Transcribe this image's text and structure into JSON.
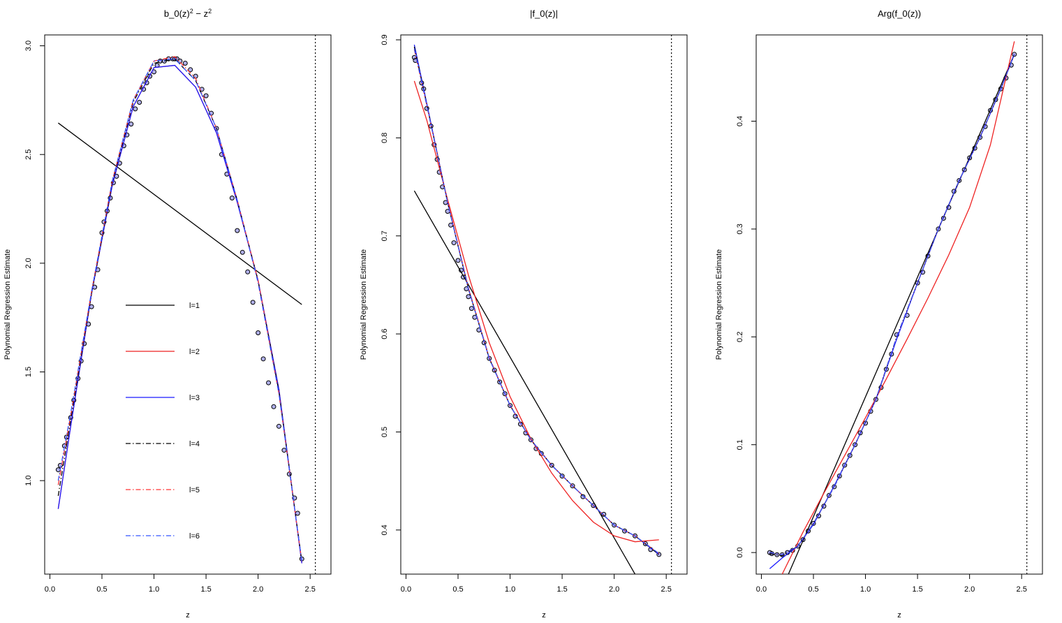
{
  "colors": {
    "l1": "#000000",
    "l2": "#ee2222",
    "l3": "#1a1aff",
    "l4": "#000000",
    "l5": "#ff3333",
    "l6": "#3355ff",
    "points_stroke": "#000000",
    "points_fill": "#7070d8",
    "reference_line": "#000000"
  },
  "chart_data": [
    {
      "type": "line",
      "title": "b_0(z)^2 - z^2",
      "title_parts": {
        "base": "b_0(z)",
        "sup1": "2",
        "minus": " − z",
        "sup2": "2"
      },
      "xlabel": "z",
      "ylabel": "Polynomial Regression Estimate",
      "xlim": [
        -0.05,
        2.7
      ],
      "ylim": [
        0.57,
        3.05
      ],
      "xticks": [
        0.0,
        0.5,
        1.0,
        1.5,
        2.0,
        2.5
      ],
      "xtick_labels": [
        "0.0",
        "0.5",
        "1.0",
        "1.5",
        "2.0",
        "2.5"
      ],
      "yticks": [
        1.0,
        1.5,
        2.0,
        2.5,
        3.0
      ],
      "ytick_labels": [
        "1.0",
        "1.5",
        "2.0",
        "2.5",
        "3.0"
      ],
      "vline": 2.55,
      "legend": {
        "placement": "inside-left",
        "entries": [
          {
            "label": "l=1",
            "key": "l1",
            "dash": "solid"
          },
          {
            "label": "l=2",
            "key": "l2",
            "dash": "solid"
          },
          {
            "label": "l=3",
            "key": "l3",
            "dash": "solid"
          },
          {
            "label": "l=4",
            "key": "l4",
            "dash": "dashdot"
          },
          {
            "label": "l=5",
            "key": "l5",
            "dash": "dashdot"
          },
          {
            "label": "l=6",
            "key": "l6",
            "dash": "dashdot"
          }
        ]
      },
      "points": {
        "x": [
          0.08,
          0.1,
          0.14,
          0.16,
          0.2,
          0.23,
          0.27,
          0.3,
          0.33,
          0.37,
          0.4,
          0.43,
          0.46,
          0.5,
          0.52,
          0.55,
          0.58,
          0.61,
          0.64,
          0.67,
          0.71,
          0.74,
          0.78,
          0.82,
          0.86,
          0.9,
          0.93,
          0.96,
          1.0,
          1.03,
          1.06,
          1.1,
          1.14,
          1.18,
          1.2,
          1.22,
          1.25,
          1.3,
          1.35,
          1.4,
          1.46,
          1.5,
          1.55,
          1.6,
          1.65,
          1.7,
          1.75,
          1.8,
          1.85,
          1.9,
          1.95,
          2.0,
          2.05,
          2.1,
          2.15,
          2.2,
          2.25,
          2.3,
          2.35,
          2.38,
          2.42
        ],
        "y": [
          1.05,
          1.07,
          1.16,
          1.2,
          1.29,
          1.37,
          1.47,
          1.55,
          1.63,
          1.72,
          1.8,
          1.89,
          1.97,
          2.14,
          2.19,
          2.24,
          2.3,
          2.37,
          2.4,
          2.46,
          2.54,
          2.59,
          2.64,
          2.71,
          2.74,
          2.8,
          2.83,
          2.86,
          2.88,
          2.91,
          2.93,
          2.93,
          2.94,
          2.94,
          2.94,
          2.94,
          2.93,
          2.92,
          2.89,
          2.86,
          2.8,
          2.77,
          2.69,
          2.62,
          2.5,
          2.41,
          2.3,
          2.15,
          2.05,
          1.96,
          1.82,
          1.68,
          1.56,
          1.45,
          1.34,
          1.25,
          1.14,
          1.03,
          0.92,
          0.85,
          0.64
        ]
      },
      "series": [
        {
          "name": "l=1",
          "key": "l1",
          "dash": "solid",
          "x": [
            0.08,
            2.42
          ],
          "y": [
            2.645,
            1.81
          ]
        },
        {
          "name": "l=2",
          "key": "l2",
          "dash": "solid",
          "x": [
            0.08,
            0.2,
            0.4,
            0.6,
            0.8,
            1.0,
            1.2,
            1.4,
            1.6,
            1.8,
            2.0,
            2.2,
            2.42
          ],
          "y": [
            0.87,
            1.25,
            1.86,
            2.36,
            2.72,
            2.9,
            2.91,
            2.81,
            2.6,
            2.28,
            1.92,
            1.42,
            0.62
          ]
        },
        {
          "name": "l=3",
          "key": "l3",
          "dash": "solid",
          "x": [
            0.08,
            0.2,
            0.4,
            0.6,
            0.8,
            1.0,
            1.2,
            1.4,
            1.6,
            1.8,
            2.0,
            2.2,
            2.42
          ],
          "y": [
            0.87,
            1.25,
            1.86,
            2.36,
            2.72,
            2.9,
            2.91,
            2.81,
            2.6,
            2.28,
            1.92,
            1.42,
            0.62
          ]
        },
        {
          "name": "l=4",
          "key": "l4",
          "dash": "dashdot",
          "x": [
            0.08,
            0.2,
            0.4,
            0.6,
            0.8,
            1.0,
            1.2,
            1.4,
            1.6,
            1.8,
            2.0,
            2.2,
            2.42
          ],
          "y": [
            0.93,
            1.28,
            1.86,
            2.37,
            2.74,
            2.92,
            2.94,
            2.84,
            2.62,
            2.29,
            1.92,
            1.41,
            0.63
          ]
        },
        {
          "name": "l=5",
          "key": "l5",
          "dash": "dashdot",
          "x": [
            0.08,
            0.2,
            0.4,
            0.6,
            0.8,
            1.0,
            1.2,
            1.4,
            1.6,
            1.8,
            2.0,
            2.2,
            2.42
          ],
          "y": [
            0.98,
            1.3,
            1.87,
            2.38,
            2.75,
            2.93,
            2.95,
            2.85,
            2.62,
            2.29,
            1.92,
            1.4,
            0.63
          ]
        },
        {
          "name": "l=6",
          "key": "l6",
          "dash": "dashdot",
          "x": [
            0.08,
            0.2,
            0.4,
            0.6,
            0.8,
            1.0,
            1.2,
            1.4,
            1.6,
            1.8,
            2.0,
            2.2,
            2.42
          ],
          "y": [
            1.0,
            1.31,
            1.87,
            2.38,
            2.75,
            2.93,
            2.94,
            2.84,
            2.62,
            2.29,
            1.91,
            1.4,
            0.63
          ]
        }
      ]
    },
    {
      "type": "line",
      "title": "|f_0(z)|",
      "xlabel": "z",
      "ylabel": "Polynomial Regression Estimate",
      "xlim": [
        -0.05,
        2.7
      ],
      "ylim": [
        0.355,
        0.905
      ],
      "xticks": [
        0.0,
        0.5,
        1.0,
        1.5,
        2.0,
        2.5
      ],
      "xtick_labels": [
        "0.0",
        "0.5",
        "1.0",
        "1.5",
        "2.0",
        "2.5"
      ],
      "yticks": [
        0.4,
        0.5,
        0.6,
        0.7,
        0.8,
        0.9
      ],
      "ytick_labels": [
        "0.4",
        "0.5",
        "0.6",
        "0.7",
        "0.8",
        "0.9"
      ],
      "vline": 2.55,
      "points": {
        "x": [
          0.08,
          0.09,
          0.15,
          0.17,
          0.2,
          0.24,
          0.27,
          0.3,
          0.32,
          0.35,
          0.38,
          0.4,
          0.43,
          0.46,
          0.5,
          0.53,
          0.55,
          0.58,
          0.6,
          0.63,
          0.66,
          0.7,
          0.75,
          0.8,
          0.85,
          0.9,
          0.95,
          1.0,
          1.05,
          1.1,
          1.15,
          1.2,
          1.25,
          1.3,
          1.4,
          1.5,
          1.6,
          1.7,
          1.8,
          1.9,
          2.0,
          2.1,
          2.2,
          2.3,
          2.35,
          2.43
        ],
        "y": [
          0.882,
          0.879,
          0.856,
          0.85,
          0.83,
          0.812,
          0.793,
          0.778,
          0.765,
          0.75,
          0.734,
          0.725,
          0.711,
          0.693,
          0.675,
          0.665,
          0.658,
          0.646,
          0.638,
          0.626,
          0.617,
          0.604,
          0.591,
          0.575,
          0.563,
          0.551,
          0.539,
          0.527,
          0.516,
          0.508,
          0.499,
          0.492,
          0.483,
          0.478,
          0.466,
          0.455,
          0.445,
          0.434,
          0.425,
          0.416,
          0.405,
          0.399,
          0.394,
          0.386,
          0.38,
          0.375
        ]
      },
      "series": [
        {
          "name": "l=1",
          "key": "l1",
          "dash": "solid",
          "x": [
            0.08,
            2.2
          ],
          "y": [
            0.746,
            0.355
          ]
        },
        {
          "name": "l=2",
          "key": "l2",
          "dash": "solid",
          "x": [
            0.08,
            0.2,
            0.4,
            0.6,
            0.8,
            1.0,
            1.2,
            1.4,
            1.6,
            1.8,
            2.0,
            2.2,
            2.43
          ],
          "y": [
            0.858,
            0.818,
            0.737,
            0.66,
            0.591,
            0.536,
            0.493,
            0.458,
            0.43,
            0.408,
            0.394,
            0.388,
            0.39
          ]
        },
        {
          "name": "l=3",
          "key": "l3",
          "dash": "solid",
          "x": [
            0.08,
            0.2,
            0.4,
            0.6,
            0.8,
            1.0,
            1.2,
            1.4,
            1.6,
            1.8,
            2.0,
            2.2,
            2.43
          ],
          "y": [
            0.895,
            0.835,
            0.734,
            0.646,
            0.575,
            0.527,
            0.492,
            0.466,
            0.445,
            0.425,
            0.405,
            0.394,
            0.375
          ]
        },
        {
          "name": "l=4",
          "key": "l4",
          "dash": "dashdot",
          "x": [
            0.08,
            0.2,
            0.4,
            0.6,
            0.8,
            1.0,
            1.2,
            1.4,
            1.6,
            1.8,
            2.0,
            2.2,
            2.43
          ],
          "y": [
            0.893,
            0.834,
            0.734,
            0.646,
            0.575,
            0.527,
            0.492,
            0.466,
            0.445,
            0.425,
            0.405,
            0.394,
            0.375
          ]
        },
        {
          "name": "l=5",
          "key": "l5",
          "dash": "dashdot",
          "x": [
            0.08,
            0.2,
            0.4,
            0.6,
            0.8,
            1.0,
            1.2,
            1.4,
            1.6,
            1.8,
            2.0,
            2.2,
            2.43
          ],
          "y": [
            0.89,
            0.833,
            0.735,
            0.647,
            0.576,
            0.527,
            0.492,
            0.466,
            0.445,
            0.425,
            0.405,
            0.394,
            0.376
          ]
        },
        {
          "name": "l=6",
          "key": "l6",
          "dash": "dashdot",
          "x": [
            0.08,
            0.2,
            0.4,
            0.6,
            0.8,
            1.0,
            1.2,
            1.4,
            1.6,
            1.8,
            2.0,
            2.2,
            2.43
          ],
          "y": [
            0.891,
            0.833,
            0.734,
            0.646,
            0.575,
            0.527,
            0.492,
            0.466,
            0.445,
            0.425,
            0.405,
            0.394,
            0.376
          ]
        }
      ]
    },
    {
      "type": "line",
      "title": "Arg(f_0(z))",
      "xlabel": "z",
      "ylabel": "Polynomial Regression Estimate",
      "xlim": [
        -0.05,
        2.7
      ],
      "ylim": [
        -0.02,
        0.48
      ],
      "xticks": [
        0.0,
        0.5,
        1.0,
        1.5,
        2.0,
        2.5
      ],
      "xtick_labels": [
        "0.0",
        "0.5",
        "1.0",
        "1.5",
        "2.0",
        "2.5"
      ],
      "yticks": [
        0.0,
        0.1,
        0.2,
        0.3,
        0.4
      ],
      "ytick_labels": [
        "0.0",
        "0.1",
        "0.2",
        "0.3",
        "0.4"
      ],
      "vline": 2.55,
      "points": {
        "x": [
          0.08,
          0.1,
          0.15,
          0.2,
          0.25,
          0.3,
          0.35,
          0.4,
          0.45,
          0.5,
          0.55,
          0.6,
          0.65,
          0.7,
          0.75,
          0.8,
          0.85,
          0.9,
          0.95,
          1.0,
          1.05,
          1.1,
          1.15,
          1.2,
          1.25,
          1.3,
          1.4,
          1.5,
          1.55,
          1.6,
          1.7,
          1.75,
          1.8,
          1.85,
          1.9,
          1.95,
          2.0,
          2.05,
          2.1,
          2.15,
          2.2,
          2.25,
          2.3,
          2.35,
          2.4,
          2.43
        ],
        "y": [
          0.0,
          -0.001,
          -0.002,
          -0.002,
          0.0,
          0.002,
          0.006,
          0.012,
          0.02,
          0.027,
          0.034,
          0.043,
          0.053,
          0.061,
          0.071,
          0.081,
          0.09,
          0.1,
          0.111,
          0.12,
          0.131,
          0.142,
          0.153,
          0.17,
          0.184,
          0.202,
          0.22,
          0.25,
          0.26,
          0.275,
          0.3,
          0.31,
          0.32,
          0.335,
          0.345,
          0.355,
          0.366,
          0.375,
          0.385,
          0.395,
          0.41,
          0.42,
          0.43,
          0.44,
          0.452,
          0.462
        ]
      },
      "series": [
        {
          "name": "l=1",
          "key": "l1",
          "dash": "solid",
          "x": [
            0.26,
            2.43
          ],
          "y": [
            -0.02,
            0.462
          ]
        },
        {
          "name": "l=2",
          "key": "l2",
          "dash": "solid",
          "x": [
            0.2,
            0.4,
            0.6,
            0.8,
            1.0,
            1.2,
            1.4,
            1.6,
            1.8,
            2.0,
            2.2,
            2.43
          ],
          "y": [
            -0.02,
            0.019,
            0.055,
            0.09,
            0.125,
            0.161,
            0.198,
            0.236,
            0.276,
            0.32,
            0.378,
            0.474
          ]
        },
        {
          "name": "l=3",
          "key": "l3",
          "dash": "solid",
          "x": [
            0.08,
            0.2,
            0.35,
            0.5,
            0.7,
            0.9,
            1.1,
            1.3,
            1.5,
            1.7,
            1.9,
            2.1,
            2.3,
            2.43
          ],
          "y": [
            -0.015,
            -0.005,
            0.006,
            0.026,
            0.062,
            0.1,
            0.142,
            0.198,
            0.25,
            0.3,
            0.345,
            0.385,
            0.43,
            0.462
          ]
        },
        {
          "name": "l=4",
          "key": "l4",
          "dash": "dashdot",
          "x": [
            0.08,
            0.2,
            0.35,
            0.5,
            0.7,
            0.9,
            1.1,
            1.3,
            1.5,
            1.7,
            1.9,
            2.1,
            2.3,
            2.43
          ],
          "y": [
            -0.001,
            -0.003,
            0.006,
            0.027,
            0.061,
            0.1,
            0.142,
            0.2,
            0.25,
            0.3,
            0.345,
            0.385,
            0.43,
            0.462
          ]
        },
        {
          "name": "l=5",
          "key": "l5",
          "dash": "dashdot",
          "x": [
            0.08,
            0.2,
            0.35,
            0.5,
            0.7,
            0.9,
            1.1,
            1.3,
            1.5,
            1.7,
            1.9,
            2.1,
            2.3,
            2.43
          ],
          "y": [
            0.0,
            -0.002,
            0.006,
            0.027,
            0.061,
            0.1,
            0.142,
            0.2,
            0.25,
            0.3,
            0.345,
            0.385,
            0.43,
            0.462
          ]
        },
        {
          "name": "l=6",
          "key": "l6",
          "dash": "dashdot",
          "x": [
            0.08,
            0.2,
            0.35,
            0.5,
            0.7,
            0.9,
            1.1,
            1.3,
            1.5,
            1.7,
            1.9,
            2.1,
            2.3,
            2.43
          ],
          "y": [
            0.0,
            -0.002,
            0.006,
            0.027,
            0.061,
            0.1,
            0.142,
            0.2,
            0.25,
            0.3,
            0.345,
            0.385,
            0.43,
            0.462
          ]
        }
      ]
    }
  ]
}
